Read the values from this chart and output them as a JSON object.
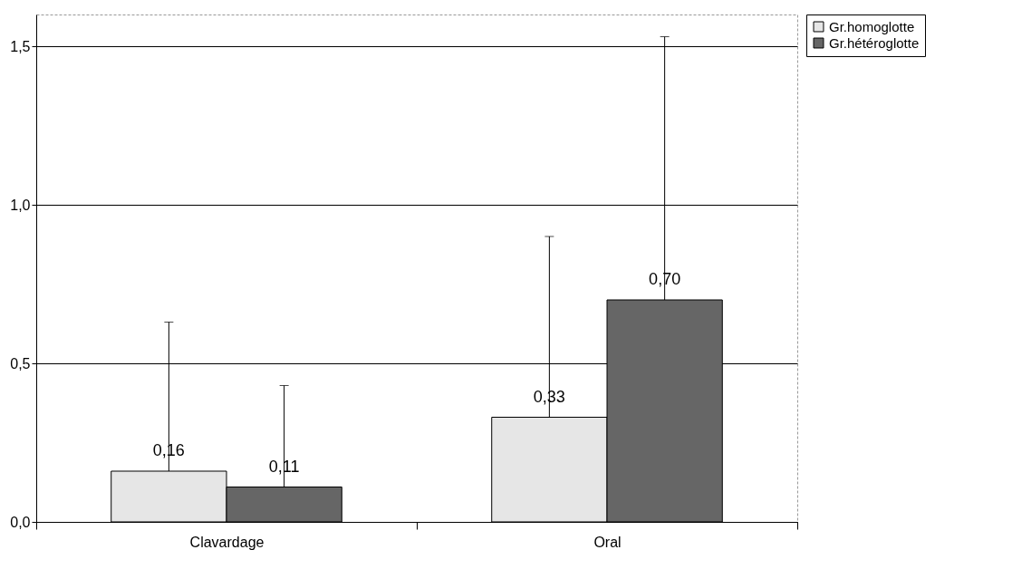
{
  "chart_data": {
    "type": "bar",
    "categories": [
      "Clavardage",
      "Oral"
    ],
    "series": [
      {
        "name": "Gr.homoglotte",
        "color": "#e6e6e6",
        "values": [
          0.16,
          0.33
        ],
        "errors": [
          [
            0.16,
            0.63
          ],
          [
            0.33,
            0.9
          ]
        ],
        "value_labels": [
          "0,16",
          "0,33"
        ]
      },
      {
        "name": "Gr.hétéroglotte",
        "color": "#666666",
        "values": [
          0.11,
          0.7
        ],
        "errors": [
          [
            0.11,
            0.43
          ],
          [
            0.7,
            1.53
          ]
        ],
        "value_labels": [
          "0,11",
          "0,70"
        ]
      }
    ],
    "ylim": [
      0,
      1.6
    ],
    "yticks": [
      {
        "value": 0,
        "label": "0,0"
      },
      {
        "value": 0.5,
        "label": "0,5"
      },
      {
        "value": 1,
        "label": "1,0"
      },
      {
        "value": 1.5,
        "label": "1,5"
      }
    ],
    "grid": "y",
    "legend": "top right"
  }
}
